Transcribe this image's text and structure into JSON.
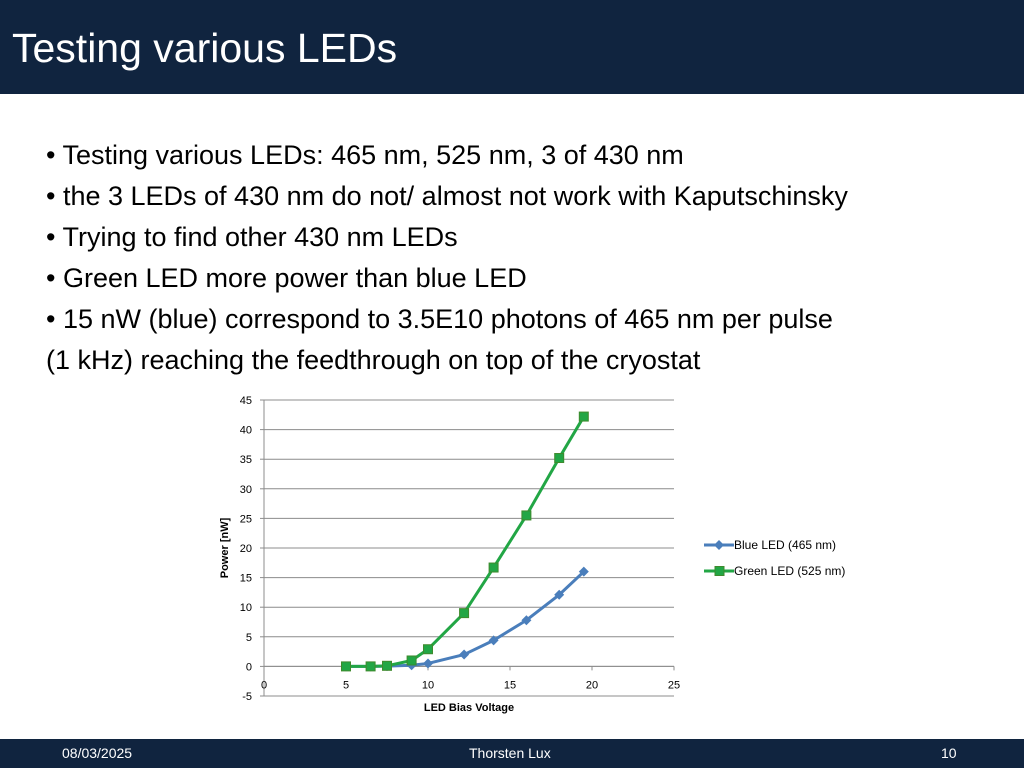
{
  "slide": {
    "title": "Testing various LEDs",
    "bullets": [
      "• Testing various LEDs: 465 nm, 525 nm, 3 of 430 nm",
      "• the 3 LEDs of 430 nm do not/ almost not work with Kaputschinsky",
      "• Trying to find other 430 nm LEDs",
      "• Green LED more power than blue LED",
      "• 15 nW (blue) correspond to 3.5E10 photons of 465 nm per pulse",
      "(1 kHz) reaching the feedthrough on top of the cryostat"
    ]
  },
  "footer": {
    "date": "08/03/2025",
    "author": "Thorsten Lux",
    "page": "10"
  },
  "chart_data": {
    "type": "scatter",
    "xlabel": "LED Bias Voltage",
    "ylabel": "Power [nW]",
    "xlim": [
      0,
      25
    ],
    "ylim": [
      -5,
      45
    ],
    "xticks": [
      0,
      5,
      10,
      15,
      20,
      25
    ],
    "yticks": [
      -5,
      0,
      5,
      10,
      15,
      20,
      25,
      30,
      35,
      40,
      45
    ],
    "grid": "horizontal",
    "legend_position": "right",
    "series": [
      {
        "name": "Blue LED (465 nm)",
        "color": "#4a7ebb",
        "marker": "diamond",
        "x": [
          5,
          6.5,
          7.5,
          9,
          10,
          12.2,
          14,
          16,
          18,
          19.5
        ],
        "y": [
          0,
          0,
          0.05,
          0.2,
          0.5,
          2,
          4.4,
          7.8,
          12.1,
          16
        ]
      },
      {
        "name": "Green LED (525 nm)",
        "color": "#22a645",
        "marker": "square",
        "x": [
          5,
          6.5,
          7.5,
          9,
          10,
          12.2,
          14,
          16,
          18,
          19.5
        ],
        "y": [
          0,
          0,
          0.1,
          1,
          2.9,
          9,
          16.7,
          25.5,
          35.2,
          42.2
        ]
      }
    ]
  }
}
